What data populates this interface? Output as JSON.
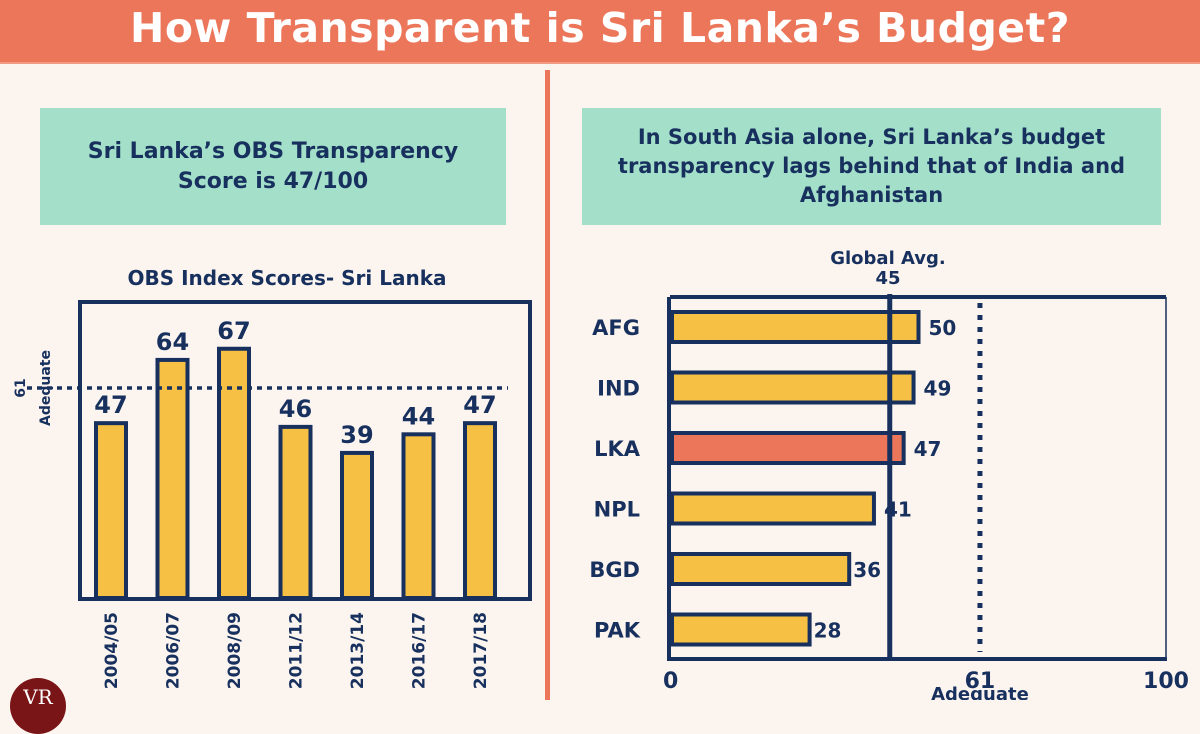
{
  "header": {
    "title": "How Transparent is Sri Lanka’s Budget?"
  },
  "colors": {
    "header_bg": "#ec7659",
    "callout_bg": "#a3dfc9",
    "navy": "#17305e",
    "bar_yellow": "#f5c044",
    "bar_highlight": "#ec7659",
    "background": "#fcf5ef"
  },
  "left_panel": {
    "callout": "Sri Lanka’s OBS Transparency Score is 47/100"
  },
  "right_panel": {
    "callout": "In South Asia alone, Sri Lanka’s budget transparency lags behind that of India and Afghanistan"
  },
  "logo": {
    "text": "VR"
  },
  "chart_data": [
    {
      "type": "bar",
      "orientation": "vertical",
      "title": "OBS Index Scores- Sri Lanka",
      "xlabel": "",
      "ylabel": "",
      "categories": [
        "2004/05",
        "2006/07",
        "2008/09",
        "2011/12",
        "2013/14",
        "2016/17",
        "2017/18"
      ],
      "values": [
        47,
        64,
        67,
        46,
        39,
        44,
        47
      ],
      "data_labels": [
        "47",
        "64",
        "67",
        "46",
        "39",
        "44",
        "47"
      ],
      "reference_line": {
        "value": 61,
        "label_value": "61",
        "label_text": "Adequate",
        "style": "dotted"
      },
      "grid": false,
      "legend": "none"
    },
    {
      "type": "bar",
      "orientation": "horizontal",
      "title": "",
      "categories": [
        "AFG",
        "IND",
        "LKA",
        "NPL",
        "BGD",
        "PAK"
      ],
      "values": [
        50,
        49,
        47,
        41,
        36,
        28
      ],
      "data_labels": [
        "50",
        "49",
        "47",
        "41",
        "36",
        "28"
      ],
      "highlight": "LKA",
      "xlim": [
        0,
        100
      ],
      "x_ticks": [
        "0",
        "61",
        "100"
      ],
      "x_tick_sublabel": {
        "tick": "61",
        "text": "Adequate"
      },
      "reference_lines": [
        {
          "value": 45,
          "label": "Global Avg.",
          "label_value": "45",
          "style": "solid"
        },
        {
          "value": 61,
          "label": "Adequate",
          "style": "dotted"
        }
      ],
      "grid": false,
      "legend": "none"
    }
  ]
}
